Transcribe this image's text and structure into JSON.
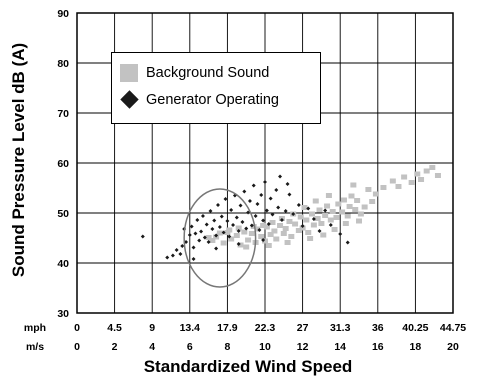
{
  "chart_data": {
    "type": "scatter",
    "title": "",
    "ylabel": "Sound Pressure Level dB (A)",
    "xlabel": "Standardized Wind Speed",
    "ylim": [
      30,
      90
    ],
    "xlim": [
      0,
      20
    ],
    "yticks": [
      "30",
      "40",
      "50",
      "60",
      "70",
      "80",
      "90"
    ],
    "x_axes": [
      {
        "unit": "mph",
        "ticks": [
          "0",
          "4.5",
          "9",
          "13.4",
          "17.9",
          "22.3",
          "27",
          "31.3",
          "36",
          "40.25",
          "44.75"
        ]
      },
      {
        "unit": "m/s",
        "ticks": [
          "0",
          "2",
          "4",
          "6",
          "8",
          "10",
          "12",
          "14",
          "16",
          "18",
          "20"
        ]
      }
    ],
    "grid": true,
    "legend": {
      "position": "top-left",
      "entries": [
        {
          "label": "Background Sound",
          "marker": "square",
          "color": "#c2c2c2"
        },
        {
          "label": "Generator Operating",
          "marker": "diamond",
          "color": "#1a1a1a"
        }
      ]
    },
    "annotations": [
      {
        "type": "circle",
        "cx": 7.6,
        "cy": 45,
        "rx": 1.9,
        "ry": 9.8
      }
    ],
    "series": [
      {
        "name": "Background Sound",
        "color": "#c2c2c2",
        "marker": "square",
        "points": [
          [
            7.2,
            44.5
          ],
          [
            7.4,
            45.2
          ],
          [
            7.8,
            44.0
          ],
          [
            8.0,
            46.1
          ],
          [
            8.2,
            44.8
          ],
          [
            8.5,
            45.5
          ],
          [
            8.7,
            43.6
          ],
          [
            8.9,
            46.2
          ],
          [
            9.1,
            44.6
          ],
          [
            9.3,
            45.9
          ],
          [
            9.5,
            44.1
          ],
          [
            9.6,
            46.8
          ],
          [
            9.8,
            45.3
          ],
          [
            10.0,
            44.4
          ],
          [
            10.1,
            47.2
          ],
          [
            10.3,
            45.7
          ],
          [
            10.5,
            46.4
          ],
          [
            10.6,
            44.8
          ],
          [
            10.8,
            47.5
          ],
          [
            11.0,
            45.9
          ],
          [
            11.1,
            46.9
          ],
          [
            11.3,
            48.3
          ],
          [
            11.4,
            45.3
          ],
          [
            11.6,
            47.8
          ],
          [
            11.8,
            46.5
          ],
          [
            11.9,
            49.2
          ],
          [
            12.0,
            47.0
          ],
          [
            12.2,
            48.6
          ],
          [
            12.3,
            46.1
          ],
          [
            12.5,
            49.8
          ],
          [
            12.6,
            47.6
          ],
          [
            12.8,
            48.9
          ],
          [
            12.9,
            50.6
          ],
          [
            13.0,
            47.9
          ],
          [
            13.2,
            49.5
          ],
          [
            13.3,
            51.4
          ],
          [
            13.5,
            48.6
          ],
          [
            13.6,
            50.3
          ],
          [
            13.8,
            49.1
          ],
          [
            13.9,
            51.8
          ],
          [
            14.1,
            50.2
          ],
          [
            14.2,
            52.6
          ],
          [
            14.4,
            49.4
          ],
          [
            14.5,
            51.3
          ],
          [
            14.6,
            53.4
          ],
          [
            14.8,
            50.7
          ],
          [
            14.9,
            52.5
          ],
          [
            15.1,
            49.8
          ],
          [
            15.3,
            51.2
          ],
          [
            15.5,
            54.7
          ],
          [
            15.7,
            52.3
          ],
          [
            15.9,
            53.8
          ],
          [
            14.7,
            55.6
          ],
          [
            13.4,
            53.5
          ],
          [
            12.7,
            52.4
          ],
          [
            12.1,
            51.1
          ],
          [
            11.5,
            49.8
          ],
          [
            10.9,
            48.9
          ],
          [
            10.4,
            48.1
          ],
          [
            9.9,
            47.5
          ],
          [
            9.4,
            47.3
          ],
          [
            8.6,
            47.0
          ],
          [
            8.1,
            46.6
          ],
          [
            7.6,
            46.0
          ],
          [
            7.0,
            45.1
          ],
          [
            9.0,
            43.2
          ],
          [
            10.2,
            43.5
          ],
          [
            11.2,
            44.1
          ],
          [
            12.4,
            44.9
          ],
          [
            13.1,
            45.6
          ],
          [
            13.7,
            46.7
          ],
          [
            14.3,
            47.9
          ],
          [
            15.0,
            48.4
          ],
          [
            16.3,
            55.1
          ],
          [
            16.8,
            56.4
          ],
          [
            17.1,
            55.3
          ],
          [
            17.4,
            57.2
          ],
          [
            17.8,
            56.1
          ],
          [
            18.1,
            57.8
          ],
          [
            18.3,
            56.7
          ],
          [
            18.6,
            58.4
          ],
          [
            18.9,
            59.1
          ],
          [
            19.2,
            57.5
          ]
        ]
      },
      {
        "name": "Generator Operating",
        "color": "#1a1a1a",
        "marker": "diamond",
        "points": [
          [
            3.5,
            45.3
          ],
          [
            4.8,
            41.1
          ],
          [
            5.1,
            41.5
          ],
          [
            5.3,
            42.6
          ],
          [
            5.6,
            43.4
          ],
          [
            5.7,
            46.8
          ],
          [
            5.8,
            44.2
          ],
          [
            6.0,
            45.6
          ],
          [
            6.1,
            47.3
          ],
          [
            6.2,
            43.1
          ],
          [
            6.3,
            45.9
          ],
          [
            6.4,
            48.6
          ],
          [
            6.5,
            44.5
          ],
          [
            6.6,
            46.3
          ],
          [
            6.7,
            49.4
          ],
          [
            6.8,
            45.1
          ],
          [
            6.9,
            47.7
          ],
          [
            7.0,
            44.2
          ],
          [
            7.1,
            50.4
          ],
          [
            7.2,
            46.8
          ],
          [
            7.3,
            48.5
          ],
          [
            7.4,
            45.5
          ],
          [
            7.5,
            51.6
          ],
          [
            7.6,
            47.2
          ],
          [
            7.7,
            49.3
          ],
          [
            7.8,
            46.1
          ],
          [
            7.9,
            52.8
          ],
          [
            8.0,
            48.4
          ],
          [
            8.1,
            45.3
          ],
          [
            8.2,
            50.6
          ],
          [
            8.3,
            47.6
          ],
          [
            8.4,
            53.5
          ],
          [
            8.5,
            49.1
          ],
          [
            8.6,
            46.4
          ],
          [
            8.7,
            51.5
          ],
          [
            8.8,
            48.2
          ],
          [
            8.9,
            54.3
          ],
          [
            9.0,
            46.9
          ],
          [
            9.1,
            50.1
          ],
          [
            9.2,
            52.4
          ],
          [
            9.3,
            47.5
          ],
          [
            9.4,
            55.5
          ],
          [
            9.5,
            49.4
          ],
          [
            9.6,
            51.8
          ],
          [
            9.7,
            46.6
          ],
          [
            9.8,
            53.6
          ],
          [
            9.9,
            48.5
          ],
          [
            10.0,
            56.2
          ],
          [
            10.1,
            50.5
          ],
          [
            10.2,
            47.8
          ],
          [
            10.3,
            52.9
          ],
          [
            10.4,
            49.7
          ],
          [
            10.6,
            54.6
          ],
          [
            10.7,
            51.1
          ],
          [
            10.9,
            48.6
          ],
          [
            11.1,
            50.4
          ],
          [
            11.3,
            53.7
          ],
          [
            11.5,
            49.8
          ],
          [
            11.8,
            51.6
          ],
          [
            12.0,
            47.4
          ],
          [
            12.3,
            50.9
          ],
          [
            12.6,
            48.8
          ],
          [
            12.9,
            46.4
          ],
          [
            13.2,
            50.5
          ],
          [
            13.5,
            47.6
          ],
          [
            14.0,
            45.8
          ],
          [
            14.4,
            44.1
          ],
          [
            11.2,
            55.8
          ],
          [
            10.8,
            57.3
          ],
          [
            9.9,
            44.6
          ],
          [
            8.6,
            43.8
          ],
          [
            7.4,
            42.9
          ],
          [
            6.2,
            40.8
          ],
          [
            5.5,
            41.8
          ]
        ]
      }
    ]
  }
}
